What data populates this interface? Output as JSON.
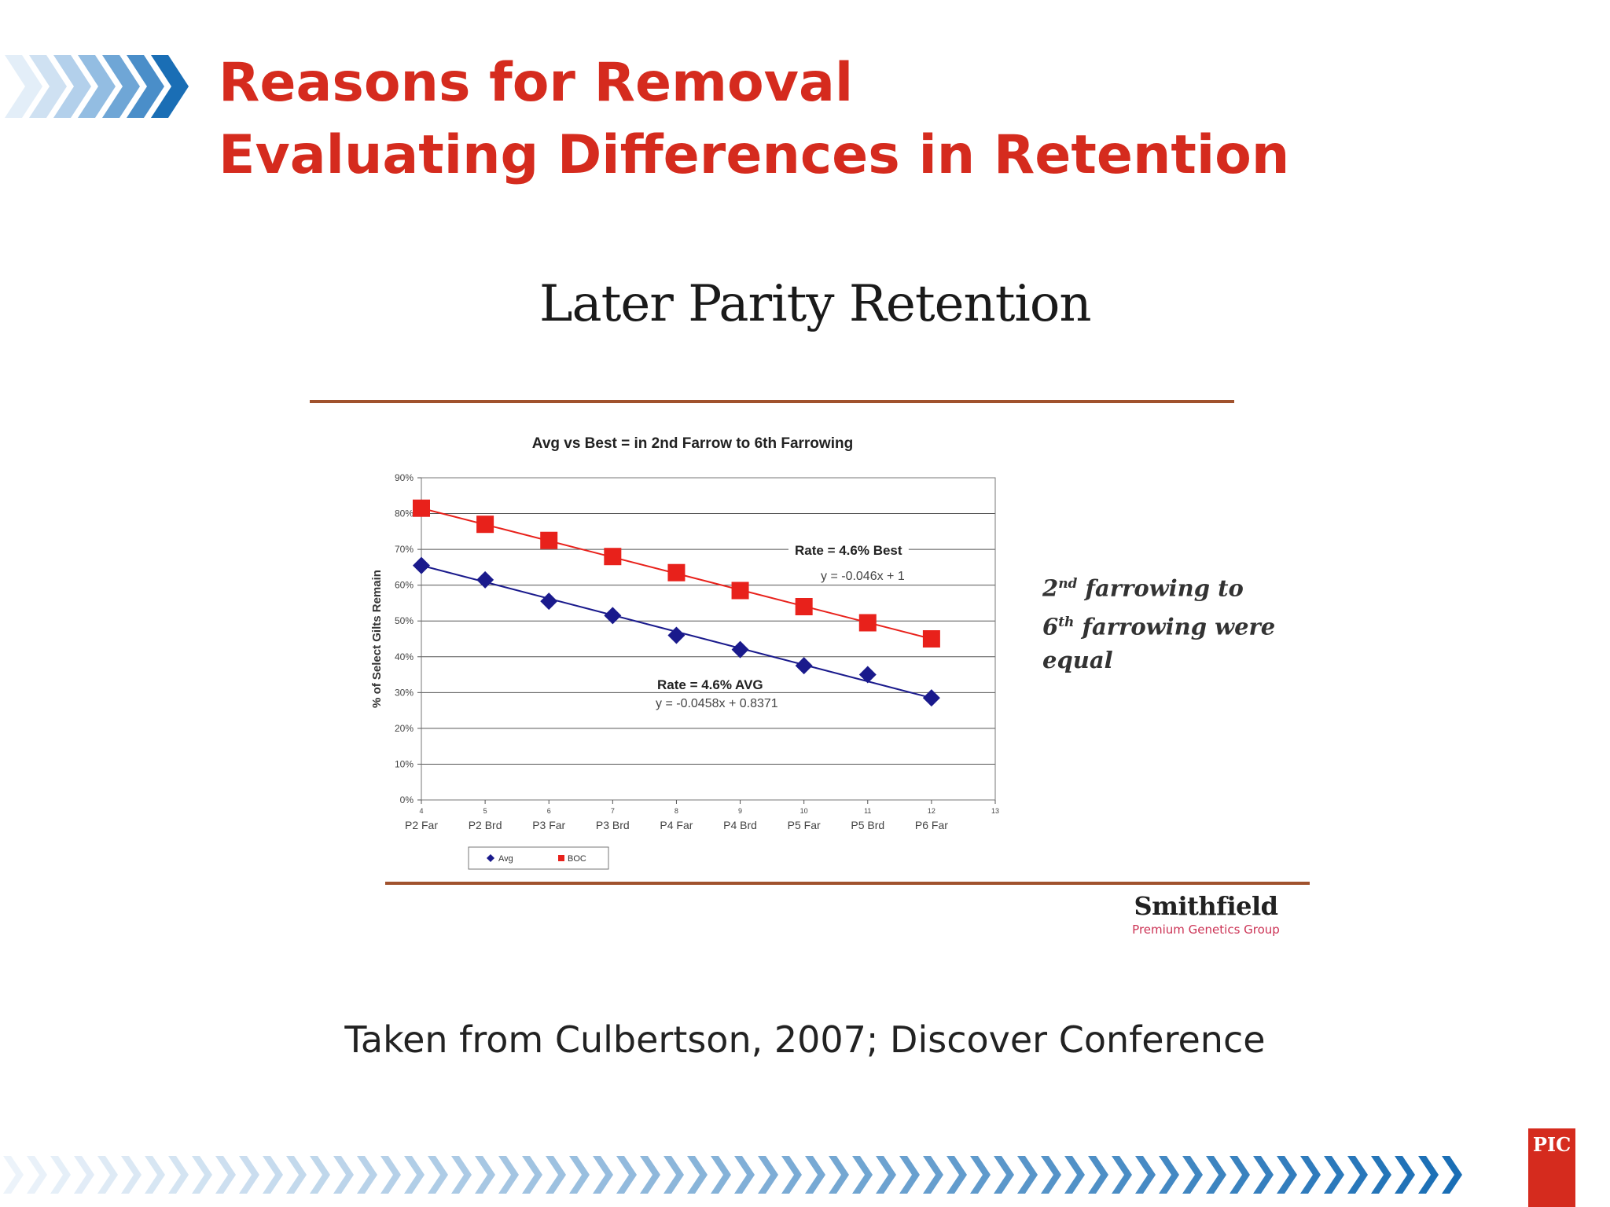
{
  "header": {
    "title_line1": "Reasons for Removal",
    "title_line2": "Evaluating Differences in Retention"
  },
  "panel_title": "Later Parity Retention",
  "note": {
    "line1_pre": "2",
    "line1_sup": "nd",
    "line1_post": " farrowing to",
    "line2_pre": "6",
    "line2_sup": "th",
    "line2_post": " farrowing were",
    "line3": "equal"
  },
  "logo": {
    "name": "Smithfield",
    "subtitle": "Premium Genetics Group"
  },
  "source": "Taken from Culbertson, 2007; Discover Conference",
  "badge": "PIC",
  "colors": {
    "title_red": "#d52b1e",
    "avg_series": "#1a1a8c",
    "best_series": "#e8211b",
    "rule": "#a0522d",
    "chevron_blue": "#1a6eb5"
  },
  "chart_data": {
    "type": "line",
    "title": "Avg vs Best  = in 2nd Farrow to 6th Farrowing",
    "ylabel": "% of Select Gilts Remain",
    "xlabel": "",
    "xlim": [
      4,
      13
    ],
    "ylim": [
      0,
      0.9
    ],
    "y_ticks": [
      "0%",
      "10%",
      "20%",
      "30%",
      "40%",
      "50%",
      "60%",
      "70%",
      "80%",
      "90%"
    ],
    "x_ticks": [
      "4",
      "5",
      "6",
      "7",
      "8",
      "9",
      "10",
      "11",
      "12",
      "13"
    ],
    "category_labels": [
      {
        "x": 4,
        "label": "P2 Far"
      },
      {
        "x": 5,
        "label": "P2 Brd"
      },
      {
        "x": 6,
        "label": "P3 Far"
      },
      {
        "x": 7,
        "label": "P3 Brd"
      },
      {
        "x": 8,
        "label": "P4 Far"
      },
      {
        "x": 9,
        "label": "P4 Brd"
      },
      {
        "x": 10,
        "label": "P5 Far"
      },
      {
        "x": 11,
        "label": "P5 Brd"
      },
      {
        "x": 12,
        "label": "P6 Far"
      }
    ],
    "grid": true,
    "legend_position": "bottom-left",
    "series": [
      {
        "name": "Avg",
        "marker": "diamond",
        "color": "#1a1a8c",
        "x": [
          4,
          5,
          6,
          7,
          8,
          9,
          10,
          11,
          12
        ],
        "values": [
          0.655,
          0.615,
          0.555,
          0.515,
          0.46,
          0.42,
          0.375,
          0.35,
          0.285
        ],
        "trendline": {
          "slope": -0.0458,
          "intercept": 0.8371
        },
        "annotation_rate": "Rate = 4.6% AVG",
        "annotation_eq": "y = -0.0458x + 0.8371"
      },
      {
        "name": "BOC",
        "marker": "square",
        "color": "#e8211b",
        "x": [
          4,
          5,
          6,
          7,
          8,
          9,
          10,
          11,
          12
        ],
        "values": [
          0.815,
          0.77,
          0.725,
          0.68,
          0.635,
          0.585,
          0.54,
          0.495,
          0.45
        ],
        "trendline": {
          "slope": -0.046,
          "intercept": 1
        },
        "annotation_rate": "Rate = 4.6% Best",
        "annotation_eq": "y = -0.046x + 1"
      }
    ]
  }
}
